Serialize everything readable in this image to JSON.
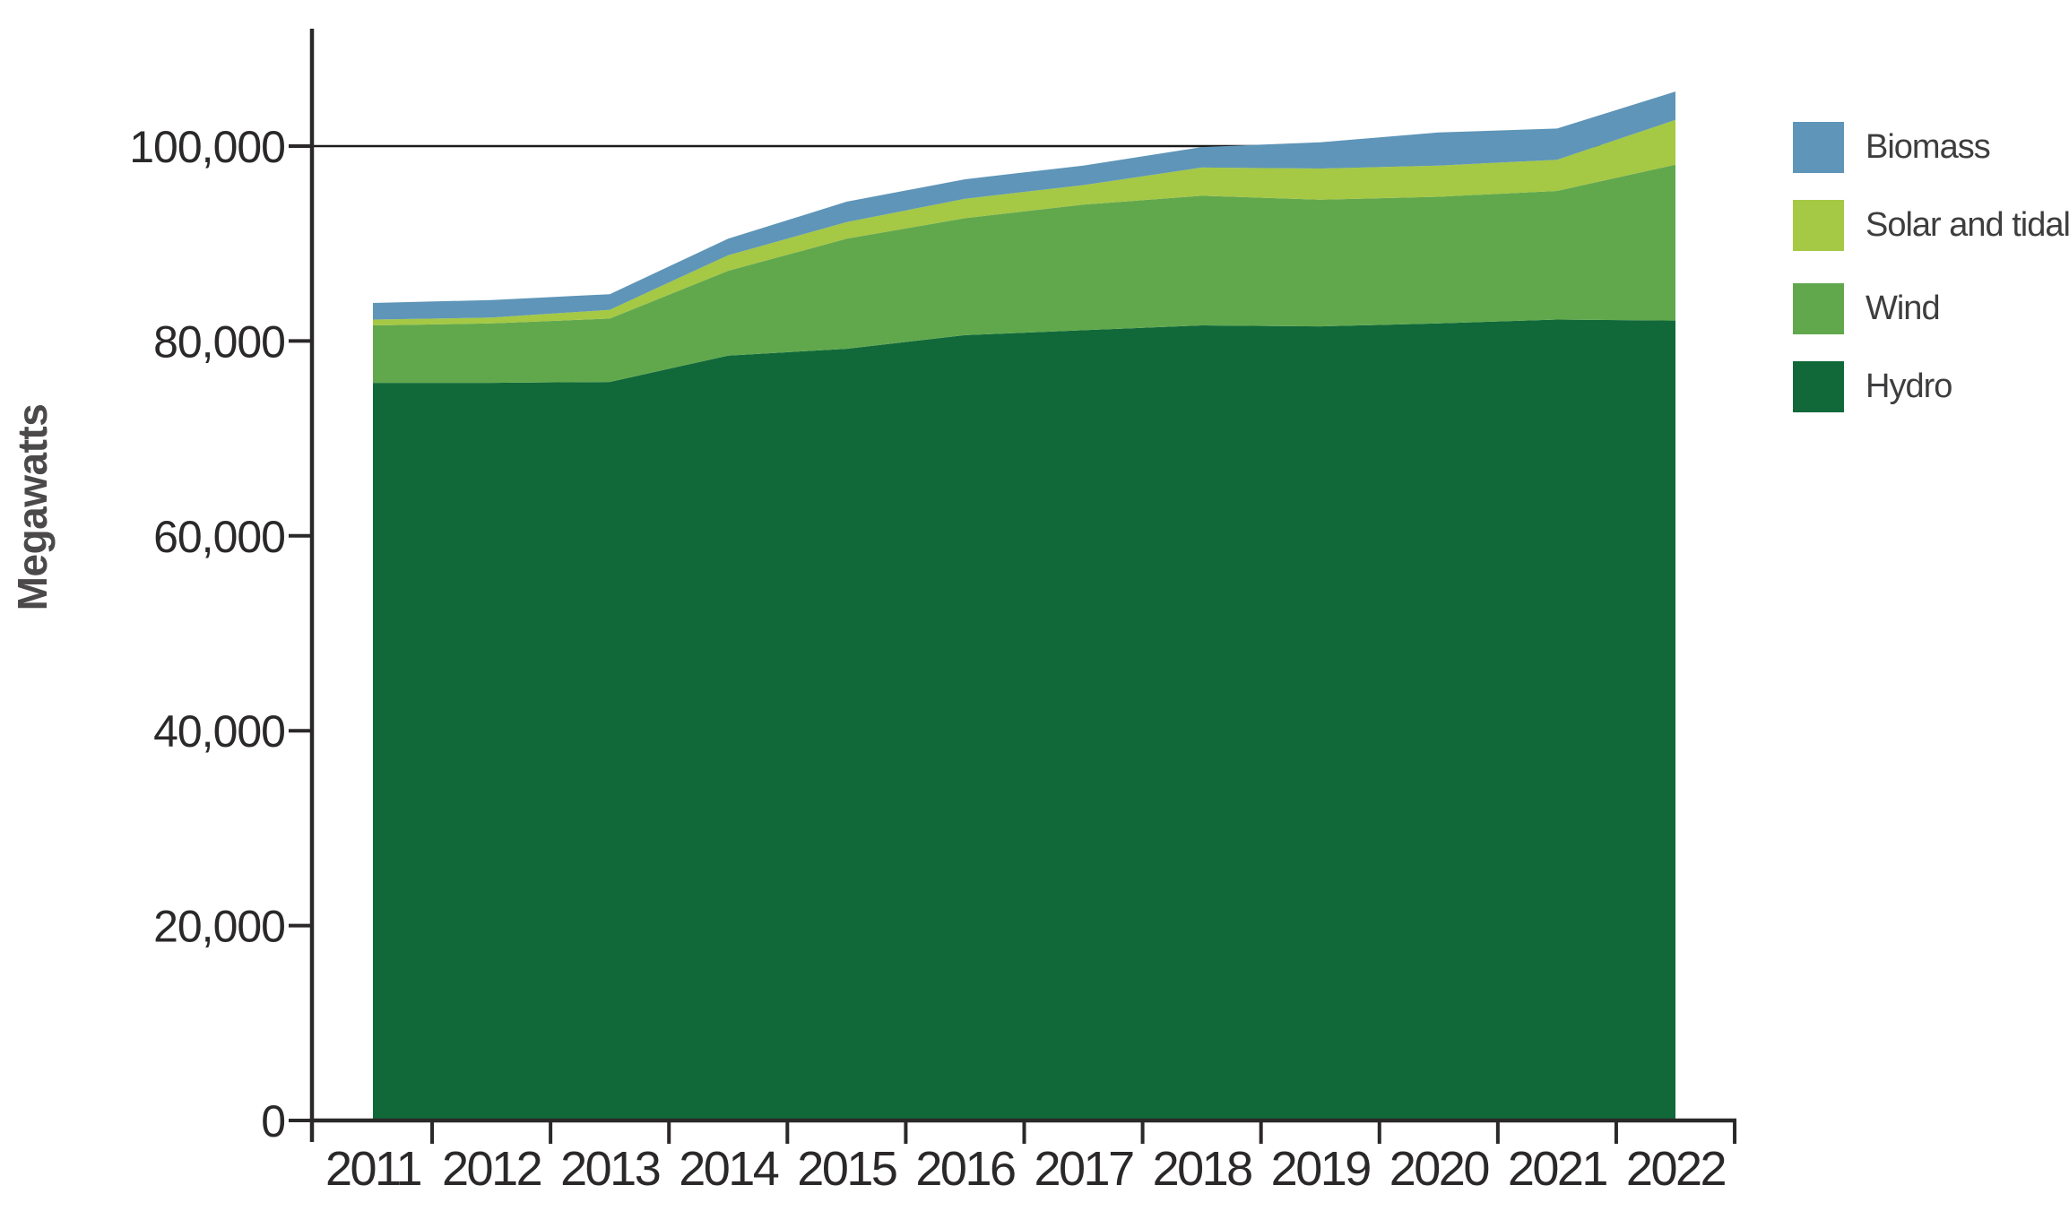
{
  "chart_data": {
    "type": "area",
    "stacked": true,
    "title": "",
    "xlabel": "",
    "ylabel": "Megawatts",
    "x": [
      2011,
      2012,
      2013,
      2014,
      2015,
      2016,
      2017,
      2018,
      2019,
      2020,
      2021,
      2022
    ],
    "series": [
      {
        "name": "Hydro",
        "color": "#11693A",
        "values": [
          75700,
          75700,
          75800,
          78500,
          79200,
          80600,
          81100,
          81600,
          81500,
          81800,
          82200,
          82100
        ]
      },
      {
        "name": "Wind",
        "color": "#61A84D",
        "values": [
          5900,
          6100,
          6500,
          8700,
          11300,
          12000,
          12900,
          13300,
          13000,
          13000,
          13200,
          16000
        ]
      },
      {
        "name": "Solar and tidal",
        "color": "#A5C845",
        "values": [
          600,
          600,
          900,
          1600,
          1700,
          2000,
          2000,
          2900,
          3200,
          3200,
          3200,
          4600
        ]
      },
      {
        "name": "Biomass",
        "color": "#5E95B8",
        "values": [
          1700,
          1800,
          1600,
          1700,
          2100,
          2000,
          2000,
          2100,
          2700,
          3400,
          3200,
          2900
        ]
      }
    ],
    "totals": [
      83900,
      84200,
      84800,
      90500,
      94300,
      96600,
      98000,
      99900,
      100400,
      101400,
      101800,
      105600
    ],
    "yticks": [
      0,
      20000,
      40000,
      60000,
      80000,
      100000
    ],
    "ylim": [
      0,
      112000
    ],
    "gridline_value": 100000,
    "grid": "single horizontal reference line at 100,000 only",
    "legend_position": "top-right",
    "legend_order_top_to_bottom": [
      "Biomass",
      "Solar and tidal",
      "Wind",
      "Hydro"
    ]
  },
  "colors": {
    "background": "#FFFFFF",
    "axis": "#2B2829",
    "tick_label": "#2B2829",
    "y_axis_title": "#4B494A",
    "legend_text": "#3E3D3F",
    "gridline": "#1A1A1A"
  }
}
